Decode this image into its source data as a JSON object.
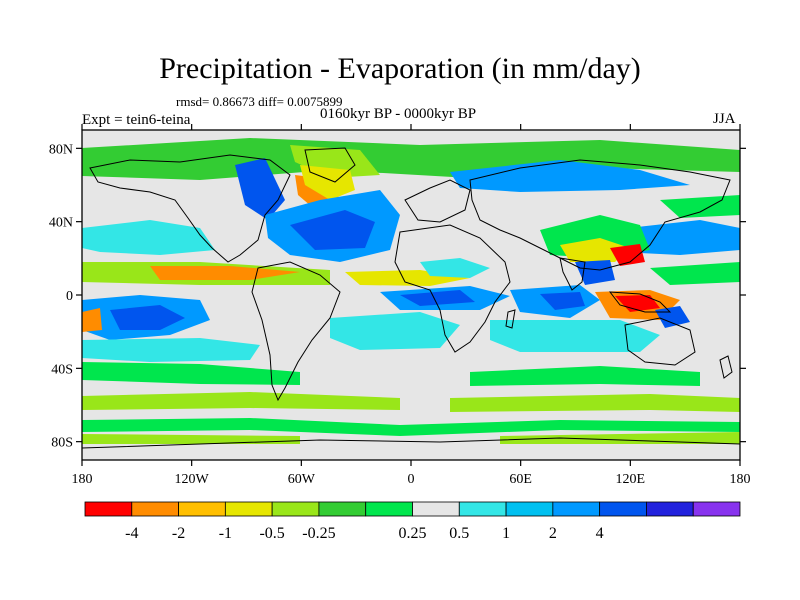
{
  "title": "Precipitation - Evaporation (in mm/day)",
  "stats": "rmsd= 0.86673 diff= 0.0075899",
  "experiment": "Expt = tein6-teina",
  "period": "0160kyr BP - 0000kyr BP",
  "season": "JJA",
  "map": {
    "lat_ticks": [
      {
        "lat": 80,
        "label": "80N"
      },
      {
        "lat": 40,
        "label": "40N"
      },
      {
        "lat": 0,
        "label": "0"
      },
      {
        "lat": -40,
        "label": "40S"
      },
      {
        "lat": -80,
        "label": "80S"
      }
    ],
    "lon_ticks": [
      {
        "lon": -180,
        "label": "180"
      },
      {
        "lon": -120,
        "label": "120W"
      },
      {
        "lon": -60,
        "label": "60W"
      },
      {
        "lon": 0,
        "label": "0"
      },
      {
        "lon": 60,
        "label": "60E"
      },
      {
        "lon": 120,
        "label": "120E"
      },
      {
        "lon": 180,
        "label": "180"
      }
    ],
    "lat_range": [
      -90,
      90
    ],
    "lon_range": [
      -180,
      180
    ]
  },
  "colorbar": {
    "colors": [
      "#ff0000",
      "#ff8c00",
      "#ffbf00",
      "#e6e600",
      "#99e619",
      "#33cc33",
      "#00e64d",
      "#e6e6e6",
      "#33e6e6",
      "#00c0f0",
      "#0099ff",
      "#0055ee",
      "#2222dd",
      "#8833ee"
    ],
    "labels": [
      "-4",
      "-2",
      "-1",
      "-0.5",
      "-0.25",
      "0.25",
      "0.5",
      "1",
      "2",
      "4"
    ],
    "label_boundaries": [
      1,
      2,
      3,
      4,
      5,
      7,
      8,
      9,
      10,
      11
    ]
  },
  "colors": {
    "ocean_bg": "#e6e6e6",
    "coast": "#000000"
  }
}
